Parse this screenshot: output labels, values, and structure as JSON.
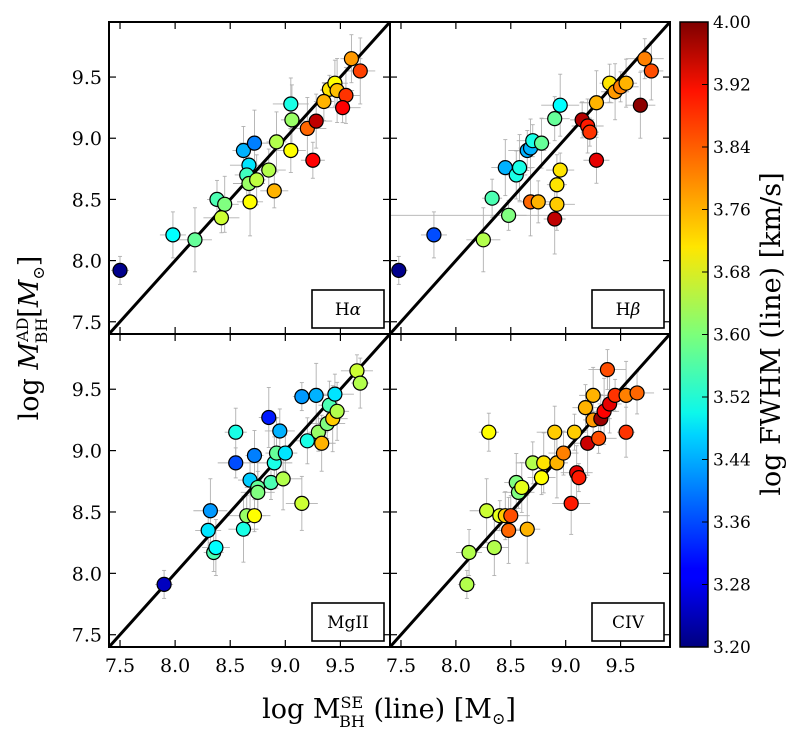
{
  "chart_data": {
    "type": "scatter",
    "xlabel": "log M_BH^SE (line) [M_⊙]",
    "xlabel_parts": {
      "base": "log M",
      "sub": "BH",
      "sup": "SE",
      "rest": " (line) [M",
      "odot": "⊙",
      "close": "]"
    },
    "ylabel": "log M_BH^AD [M_⊙]",
    "ylabel_parts": {
      "base": "log M",
      "sub": "BH",
      "sup": "AD",
      "rest": "[M",
      "odot": "⊙",
      "close": "]"
    },
    "xlim": [
      7.4,
      9.95
    ],
    "ylim": [
      7.4,
      9.95
    ],
    "x_ticks": [
      7.5,
      8.0,
      8.5,
      9.0,
      9.5
    ],
    "x_tick_labels": [
      "7.5",
      "8.0",
      "8.5",
      "9.0",
      "9.5"
    ],
    "y_ticks": [
      7.5,
      8.0,
      8.5,
      9.0,
      9.5
    ],
    "y_tick_labels": [
      "7.5",
      "8.0",
      "8.5",
      "9.0",
      "9.5"
    ],
    "one_to_one_line": true,
    "grid": false,
    "colorbar": {
      "label": "log FWHM (line) [km/s]",
      "range": [
        3.2,
        4.0
      ],
      "colormap": "jet",
      "ticks": [
        3.2,
        3.28,
        3.36,
        3.44,
        3.52,
        3.6,
        3.68,
        3.76,
        3.84,
        3.92,
        4.0
      ],
      "tick_labels": [
        "3.20",
        "3.28",
        "3.36",
        "3.44",
        "3.52",
        "3.60",
        "3.68",
        "3.76",
        "3.84",
        "3.92",
        "4.00"
      ]
    },
    "panels": [
      {
        "label": "Hα",
        "label_parts": [
          "H",
          "α"
        ],
        "points": [
          [
            7.5,
            7.92,
            3.21
          ],
          [
            7.98,
            8.21,
            3.5
          ],
          [
            8.18,
            8.17,
            3.58
          ],
          [
            8.38,
            8.5,
            3.56
          ],
          [
            8.45,
            8.46,
            3.6
          ],
          [
            8.42,
            8.35,
            3.66
          ],
          [
            8.62,
            8.9,
            3.44
          ],
          [
            8.72,
            8.96,
            3.4
          ],
          [
            8.67,
            8.78,
            3.48
          ],
          [
            8.65,
            8.7,
            3.55
          ],
          [
            8.67,
            8.63,
            3.62
          ],
          [
            8.74,
            8.66,
            3.65
          ],
          [
            8.68,
            8.48,
            3.7
          ],
          [
            8.85,
            8.74,
            3.64
          ],
          [
            8.92,
            8.97,
            3.64
          ],
          [
            8.9,
            8.57,
            3.76
          ],
          [
            9.05,
            9.28,
            3.52
          ],
          [
            9.06,
            9.15,
            3.62
          ],
          [
            9.05,
            8.9,
            3.7
          ],
          [
            9.2,
            9.08,
            3.82
          ],
          [
            9.25,
            8.82,
            3.9
          ],
          [
            9.28,
            9.14,
            3.95
          ],
          [
            9.4,
            9.4,
            3.72
          ],
          [
            9.45,
            9.45,
            3.7
          ],
          [
            9.47,
            9.39,
            3.75
          ],
          [
            9.35,
            9.3,
            3.76
          ],
          [
            9.55,
            9.35,
            3.86
          ],
          [
            9.52,
            9.25,
            3.9
          ],
          [
            9.6,
            9.65,
            3.78
          ],
          [
            9.68,
            9.55,
            3.85
          ]
        ]
      },
      {
        "label": "Hβ",
        "label_parts": [
          "H",
          "β"
        ],
        "points": [
          [
            7.48,
            7.92,
            3.21
          ],
          [
            7.8,
            8.21,
            3.36
          ],
          [
            8.25,
            8.17,
            3.64
          ],
          [
            8.33,
            8.51,
            3.56
          ],
          [
            8.45,
            8.76,
            3.44
          ],
          [
            8.48,
            8.37,
            3.6
          ],
          [
            8.55,
            8.7,
            3.52
          ],
          [
            8.58,
            8.76,
            3.52
          ],
          [
            8.65,
            8.9,
            3.44
          ],
          [
            8.68,
            8.92,
            3.44
          ],
          [
            8.7,
            8.98,
            3.52
          ],
          [
            8.78,
            8.96,
            3.58
          ],
          [
            8.68,
            8.48,
            3.82
          ],
          [
            8.75,
            8.48,
            3.76
          ],
          [
            8.92,
            8.62,
            3.72
          ],
          [
            8.95,
            8.74,
            3.72
          ],
          [
            8.92,
            8.46,
            3.74
          ],
          [
            8.9,
            8.34,
            3.95
          ],
          [
            8.9,
            9.16,
            3.58
          ],
          [
            8.95,
            9.27,
            3.5
          ],
          [
            9.15,
            9.15,
            3.96
          ],
          [
            9.2,
            9.1,
            3.88
          ],
          [
            9.22,
            9.05,
            3.86
          ],
          [
            9.28,
            8.82,
            3.92
          ],
          [
            9.28,
            9.29,
            3.76
          ],
          [
            9.4,
            9.45,
            3.72
          ],
          [
            9.45,
            9.38,
            3.78
          ],
          [
            9.5,
            9.42,
            3.8
          ],
          [
            9.55,
            9.45,
            3.76
          ],
          [
            9.68,
            9.27,
            3.99
          ],
          [
            9.72,
            9.65,
            3.8
          ],
          [
            9.78,
            9.55,
            3.84
          ]
        ]
      },
      {
        "label": "MgII",
        "label_parts": [
          "MgII",
          ""
        ],
        "points": [
          [
            7.9,
            7.91,
            3.25
          ],
          [
            8.3,
            8.35,
            3.48
          ],
          [
            8.32,
            8.51,
            3.42
          ],
          [
            8.35,
            8.17,
            3.56
          ],
          [
            8.37,
            8.21,
            3.5
          ],
          [
            8.55,
            8.9,
            3.36
          ],
          [
            8.55,
            9.15,
            3.52
          ],
          [
            8.62,
            8.36,
            3.52
          ],
          [
            8.65,
            8.47,
            3.62
          ],
          [
            8.68,
            8.76,
            3.46
          ],
          [
            8.72,
            8.47,
            3.7
          ],
          [
            8.72,
            8.96,
            3.4
          ],
          [
            8.75,
            8.7,
            3.58
          ],
          [
            8.75,
            8.66,
            3.6
          ],
          [
            8.85,
            9.27,
            3.32
          ],
          [
            8.87,
            8.74,
            3.56
          ],
          [
            8.9,
            8.9,
            3.52
          ],
          [
            8.92,
            8.98,
            3.58
          ],
          [
            8.95,
            9.16,
            3.44
          ],
          [
            8.98,
            8.77,
            3.64
          ],
          [
            9.0,
            8.98,
            3.48
          ],
          [
            9.15,
            8.57,
            3.66
          ],
          [
            9.15,
            9.44,
            3.42
          ],
          [
            9.2,
            9.08,
            3.52
          ],
          [
            9.28,
            9.45,
            3.44
          ],
          [
            9.3,
            9.15,
            3.62
          ],
          [
            9.33,
            9.06,
            3.76
          ],
          [
            9.38,
            9.22,
            3.6
          ],
          [
            9.4,
            9.37,
            3.56
          ],
          [
            9.43,
            9.26,
            3.74
          ],
          [
            9.45,
            9.46,
            3.48
          ],
          [
            9.47,
            9.32,
            3.64
          ],
          [
            9.65,
            9.65,
            3.66
          ],
          [
            9.68,
            9.55,
            3.64
          ]
        ]
      },
      {
        "label": "CIV",
        "label_parts": [
          "CIV",
          ""
        ],
        "points": [
          [
            8.1,
            7.91,
            3.64
          ],
          [
            8.12,
            8.17,
            3.64
          ],
          [
            8.28,
            8.51,
            3.66
          ],
          [
            8.3,
            9.15,
            3.7
          ],
          [
            8.35,
            8.21,
            3.64
          ],
          [
            8.4,
            8.47,
            3.68
          ],
          [
            8.45,
            8.47,
            3.74
          ],
          [
            8.48,
            8.35,
            3.82
          ],
          [
            8.5,
            8.47,
            3.84
          ],
          [
            8.55,
            8.74,
            3.6
          ],
          [
            8.57,
            8.66,
            3.6
          ],
          [
            8.6,
            8.7,
            3.68
          ],
          [
            8.65,
            8.36,
            3.76
          ],
          [
            8.7,
            8.9,
            3.64
          ],
          [
            8.8,
            8.9,
            3.72
          ],
          [
            8.78,
            8.78,
            3.7
          ],
          [
            8.9,
            9.15,
            3.74
          ],
          [
            8.92,
            8.9,
            3.76
          ],
          [
            8.98,
            8.98,
            3.8
          ],
          [
            9.05,
            8.57,
            3.88
          ],
          [
            9.08,
            9.15,
            3.74
          ],
          [
            9.1,
            8.82,
            3.92
          ],
          [
            9.12,
            8.78,
            3.88
          ],
          [
            9.18,
            9.35,
            3.76
          ],
          [
            9.2,
            9.06,
            3.94
          ],
          [
            9.25,
            9.25,
            3.78
          ],
          [
            9.25,
            9.45,
            3.76
          ],
          [
            9.3,
            9.1,
            3.84
          ],
          [
            9.32,
            9.26,
            3.98
          ],
          [
            9.35,
            9.32,
            3.9
          ],
          [
            9.38,
            9.66,
            3.84
          ],
          [
            9.4,
            9.38,
            3.92
          ],
          [
            9.45,
            9.45,
            3.86
          ],
          [
            9.55,
            9.15,
            3.86
          ],
          [
            9.55,
            9.45,
            3.8
          ],
          [
            9.65,
            9.47,
            3.82
          ]
        ]
      }
    ]
  }
}
